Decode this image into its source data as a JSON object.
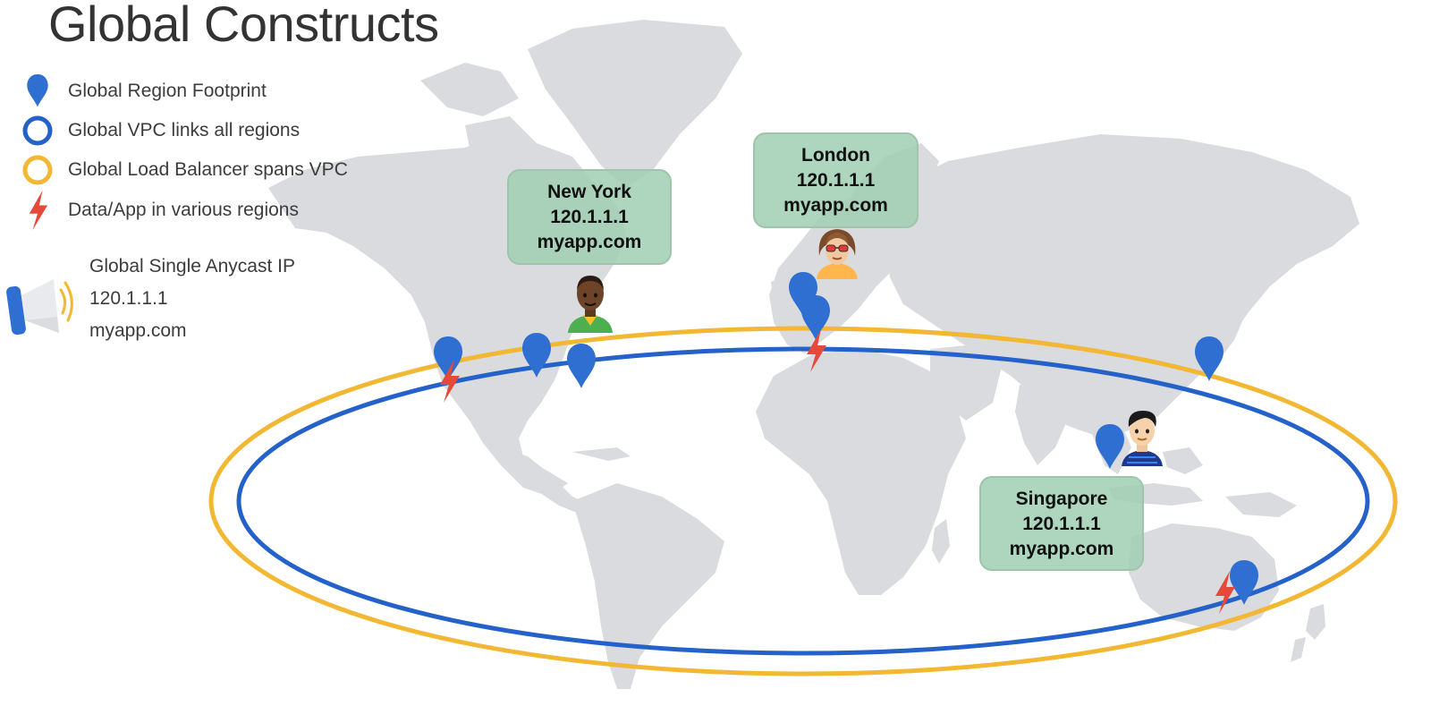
{
  "title": "Global Constructs",
  "legend": [
    {
      "label": "Global Region Footprint",
      "icon": "map-pin-icon"
    },
    {
      "label": "Global VPC links all regions",
      "icon": "blue-ring-icon"
    },
    {
      "label": "Global Load Balancer spans VPC",
      "icon": "yellow-ring-icon"
    },
    {
      "label": "Data/App in various regions",
      "icon": "lightning-bolt-icon"
    }
  ],
  "anycast": {
    "icon": "megaphone-icon",
    "label": "Global Single Anycast IP",
    "ip": "120.1.1.1",
    "domain": "myapp.com"
  },
  "callouts": [
    {
      "city": "New York",
      "ip": "120.1.1.1",
      "domain": "myapp.com"
    },
    {
      "city": "London",
      "ip": "120.1.1.1",
      "domain": "myapp.com"
    },
    {
      "city": "Singapore",
      "ip": "120.1.1.1",
      "domain": "myapp.com"
    }
  ],
  "colors": {
    "pin": "#2f6fd1",
    "vpc_ring": "#2462c9",
    "lb_ring": "#f2b733",
    "bolt": "#e4493a",
    "map": "#dadbdf",
    "callout": "#a6d2b8"
  }
}
